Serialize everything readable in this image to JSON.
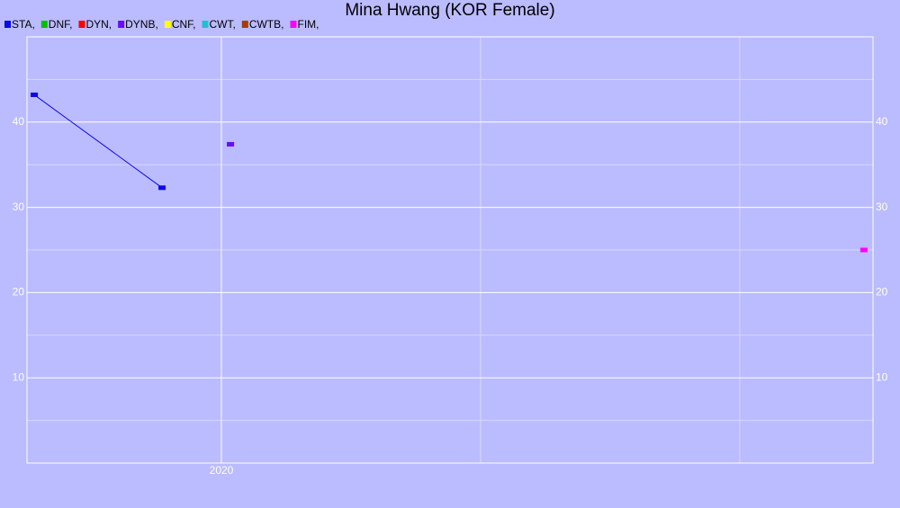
{
  "chart_data": {
    "type": "line",
    "title": "Mina Hwang (KOR Female)",
    "series": [
      {
        "name": "STA,",
        "color": "#0a0ae6",
        "x": [
          2019.278,
          2019.771
        ],
        "values": [
          43.2,
          32.3
        ]
      },
      {
        "name": "DNF,",
        "color": "#00c000",
        "x": [],
        "values": []
      },
      {
        "name": "DYN,",
        "color": "#ff0000",
        "x": [],
        "values": []
      },
      {
        "name": "DYNB,",
        "color": "#6a0aff",
        "x": [
          2020.035
        ],
        "values": [
          37.4
        ]
      },
      {
        "name": "CNF,",
        "color": "#ffff00",
        "x": [],
        "values": []
      },
      {
        "name": "CWT,",
        "color": "#20c0d0",
        "x": [],
        "values": []
      },
      {
        "name": "CWTB,",
        "color": "#a04000",
        "x": [],
        "values": []
      },
      {
        "name": "FIM,",
        "color": "#ff00ff",
        "x": [
          2022.479
        ],
        "values": [
          25.0
        ]
      }
    ],
    "xlim": [
      2019.25,
      2022.514
    ],
    "xticks": [
      2020
    ],
    "xminor_ticks": [
      2021,
      2022
    ],
    "ylim": [
      0,
      50
    ],
    "yticks": [
      10,
      20,
      30,
      40
    ],
    "yminor_ticks": [
      5,
      15,
      25,
      35,
      45
    ],
    "grid": true
  }
}
